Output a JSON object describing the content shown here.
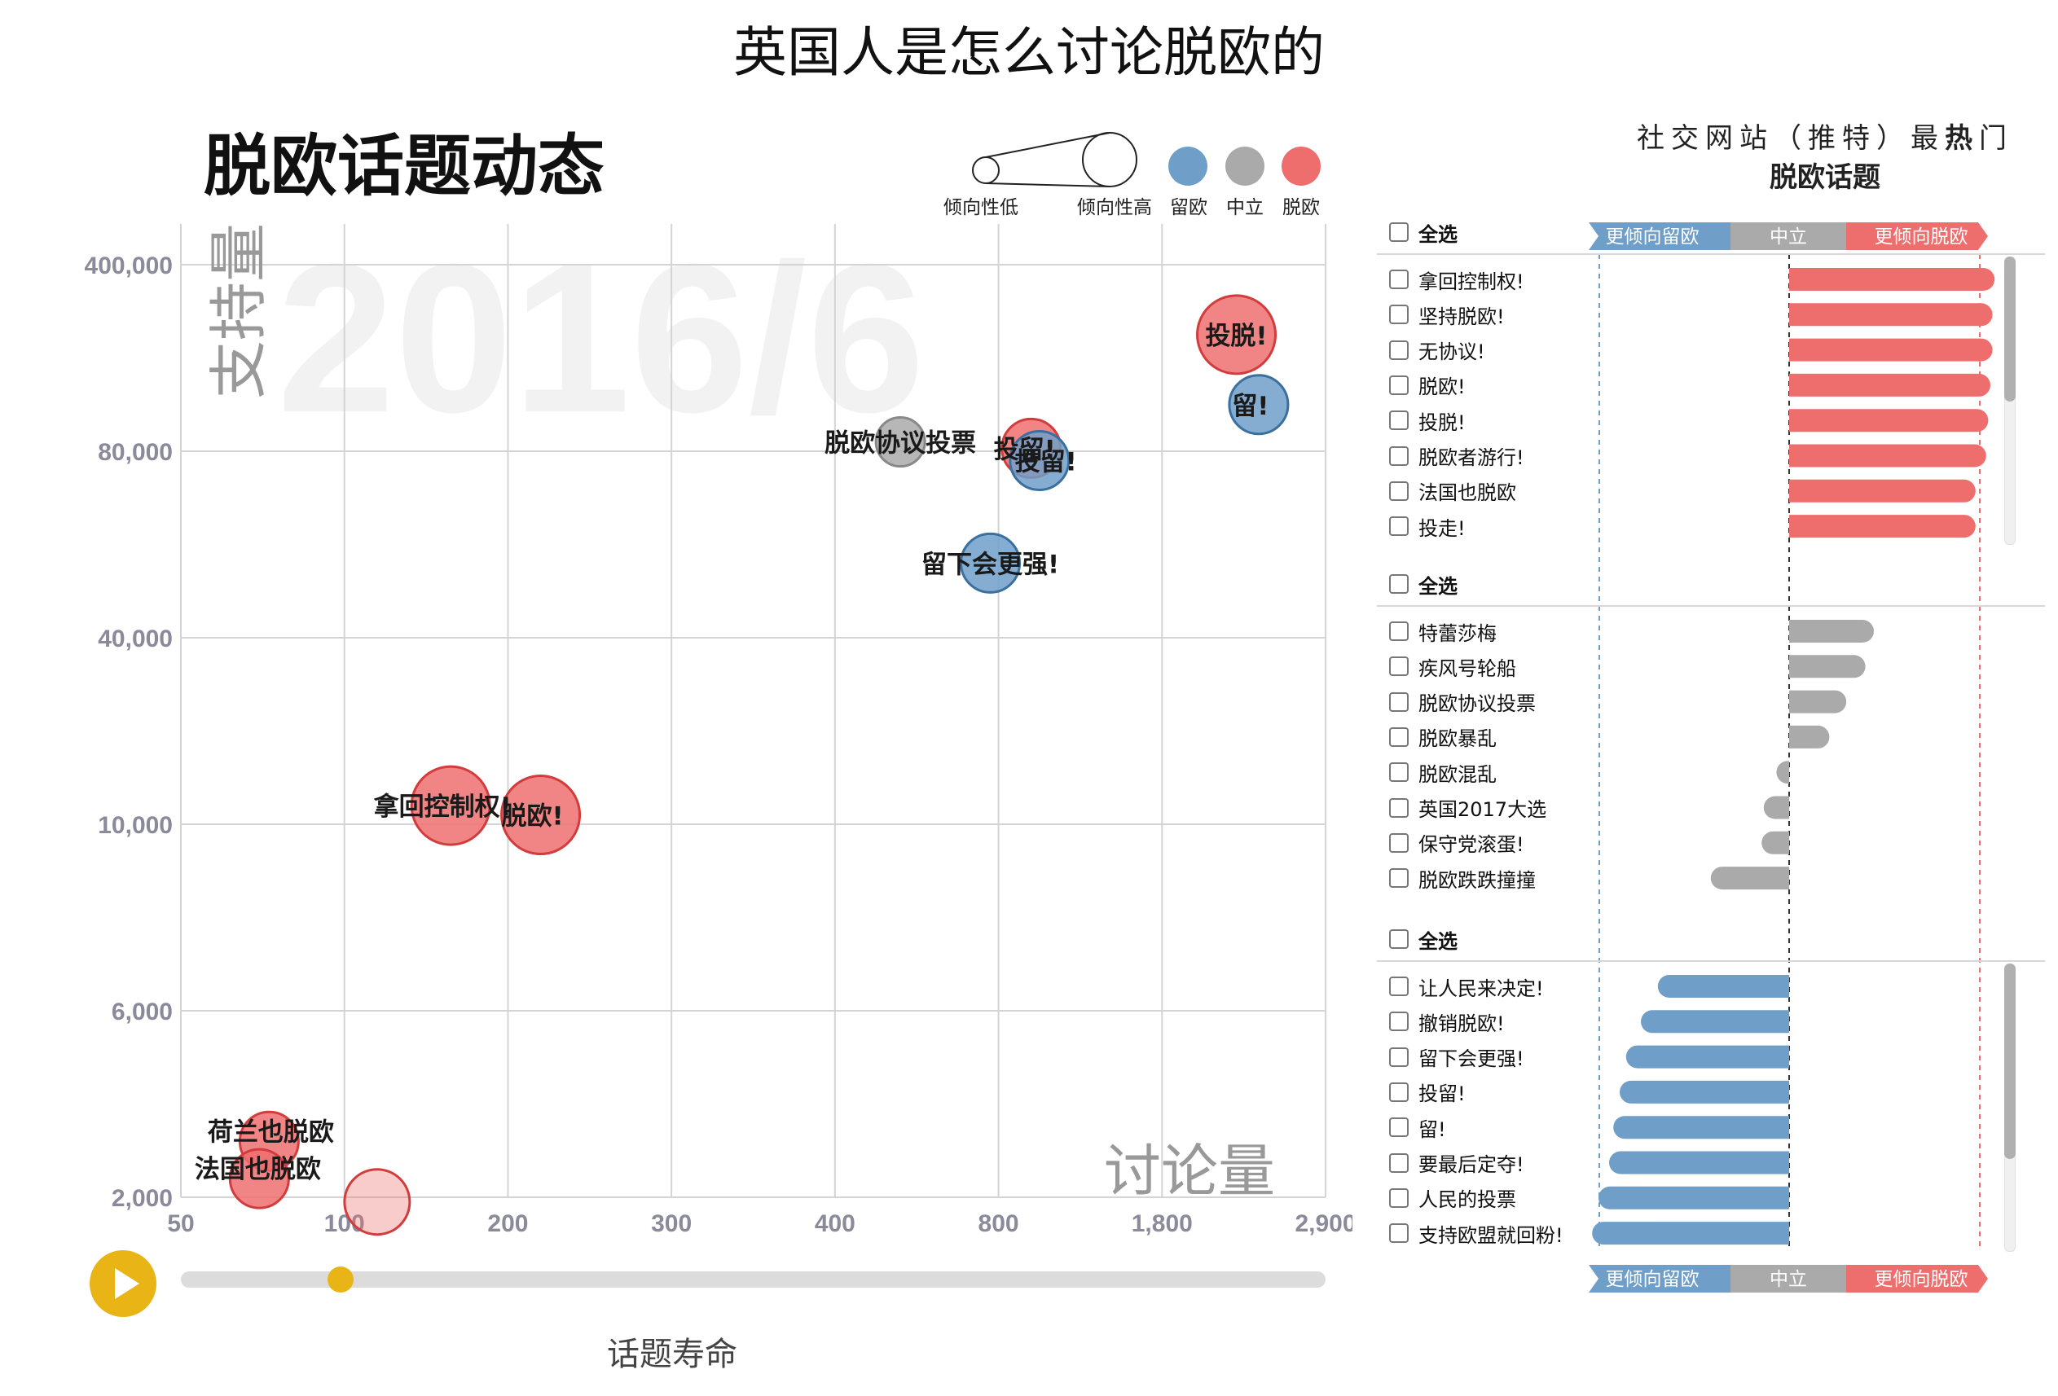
{
  "title": "英国人是怎么讨论脱欧的",
  "colors": {
    "remain": "#6f9fc9",
    "neutral": "#aaaaaa",
    "leave": "#ee6e6e",
    "accent": "#e8b416"
  },
  "bubble_chart": {
    "title": "脱欧话题动态",
    "date_watermark": "2016/6",
    "x_axis_label": "讨论量",
    "y_axis_label": "支持量",
    "slider_label": "话题寿命",
    "legend": {
      "size_low": "倾向性低",
      "size_high": "倾向性高",
      "remain": "留欧",
      "neutral": "中立",
      "leave": "脱欧"
    }
  },
  "chart_data": [
    {
      "type": "scatter",
      "title": "脱欧话题动态",
      "xlabel": "讨论量",
      "ylabel": "支持量",
      "x_ticks": [
        "50",
        "100",
        "200",
        "300",
        "400",
        "800",
        "1,800",
        "2,900"
      ],
      "y_ticks": [
        "2,000",
        "6,000",
        "10,000",
        "40,000",
        "80,000",
        "400,000"
      ],
      "points": [
        {
          "label": "投脱!",
          "stance": "leave",
          "x": 2300,
          "y": 280000
        },
        {
          "label": "留!",
          "stance": "remain",
          "x": 2450,
          "y": 160000
        },
        {
          "label": "脱欧协议投票",
          "stance": "neutral",
          "x": 560,
          "y": 96000
        },
        {
          "label": "投留!",
          "stance": "leave",
          "x": 1000,
          "y": 85000
        },
        {
          "label": "投留!",
          "stance": "remain",
          "x": 1050,
          "y": 78000
        },
        {
          "label": "留下会更强!",
          "stance": "remain",
          "x": 780,
          "y": 56000
        },
        {
          "label": "拿回控制权!",
          "stance": "leave",
          "x": 165,
          "y": 13000
        },
        {
          "label": "脱欧!",
          "stance": "leave",
          "x": 220,
          "y": 11500
        },
        {
          "label": "荷兰也脱欧",
          "stance": "leave",
          "x": 77,
          "y": 3200
        },
        {
          "label": "法国也脱欧",
          "stance": "leave",
          "x": 74,
          "y": 2400
        },
        {
          "label": "",
          "stance": "leave",
          "x": 120,
          "y": 1900
        }
      ]
    },
    {
      "type": "bar",
      "title": "社交网站（推特）最热门脱欧话题",
      "orientation": "horizontal",
      "x_scale_labels": {
        "left": "更倾向留欧",
        "center": "中立",
        "right": "更倾向脱欧"
      },
      "xlim": [
        -1,
        1
      ],
      "groups": [
        {
          "stance": "leave",
          "select_all": "全选",
          "items": [
            {
              "label": "拿回控制权!",
              "value": 0.97
            },
            {
              "label": "坚持脱欧!",
              "value": 0.96
            },
            {
              "label": "无协议!",
              "value": 0.96
            },
            {
              "label": "脱欧!",
              "value": 0.95
            },
            {
              "label": "投脱!",
              "value": 0.94
            },
            {
              "label": "脱欧者游行!",
              "value": 0.93
            },
            {
              "label": "法国也脱欧",
              "value": 0.88
            },
            {
              "label": "投走!",
              "value": 0.88
            }
          ]
        },
        {
          "stance": "neutral",
          "select_all": "全选",
          "items": [
            {
              "label": "特蕾莎梅",
              "value": 0.4
            },
            {
              "label": "疾风号轮船",
              "value": 0.36
            },
            {
              "label": "脱欧协议投票",
              "value": 0.27
            },
            {
              "label": "脱欧暴乱",
              "value": 0.19
            },
            {
              "label": "脱欧混乱",
              "value": -0.06
            },
            {
              "label": "英国2017大选",
              "value": -0.12
            },
            {
              "label": "保守党滚蛋!",
              "value": -0.13
            },
            {
              "label": "脱欧跌跌撞撞",
              "value": -0.37
            }
          ]
        },
        {
          "stance": "remain",
          "select_all": "全选",
          "items": [
            {
              "label": "让人民来决定!",
              "value": -0.62
            },
            {
              "label": "撤销脱欧!",
              "value": -0.7
            },
            {
              "label": "留下会更强!",
              "value": -0.77
            },
            {
              "label": "投留!",
              "value": -0.8
            },
            {
              "label": "留!",
              "value": -0.83
            },
            {
              "label": "要最后定夺!",
              "value": -0.85
            },
            {
              "label": "人民的投票",
              "value": -0.9
            },
            {
              "label": "支持欧盟就回粉!",
              "value": -0.93
            }
          ]
        }
      ]
    }
  ]
}
